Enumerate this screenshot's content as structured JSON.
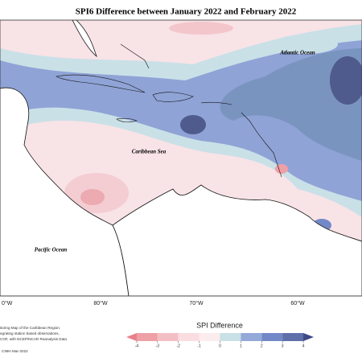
{
  "header": {
    "title": "SPI6 Difference between January 2022 and February 2022"
  },
  "map": {
    "labels": [
      "Atlantic Ocean",
      "Caribbean Sea",
      "Pacific Ocean"
    ],
    "longitudes": [
      "0°W",
      "80°W",
      "70°W",
      "60°W"
    ]
  },
  "footnote": {
    "lines": [
      "itoring Map of the Caribbean Region.",
      "egrating station based observations,",
      "COF, with NCEP/NCAR Reanalysis Data"
    ],
    "credit": "CIMH Mar-2022"
  },
  "legend": {
    "title": "SPI Difference",
    "ticks": [
      -4,
      -3,
      -2,
      -1,
      0,
      1,
      2,
      3,
      4
    ],
    "colors": [
      "#e8808a",
      "#ef9fa6",
      "#f4bfc4",
      "#f9dde1",
      "#fbecee",
      "#c8e0e6",
      "#93a9d8",
      "#7388c6",
      "#5f6fa9",
      "#3f4a86"
    ]
  }
}
